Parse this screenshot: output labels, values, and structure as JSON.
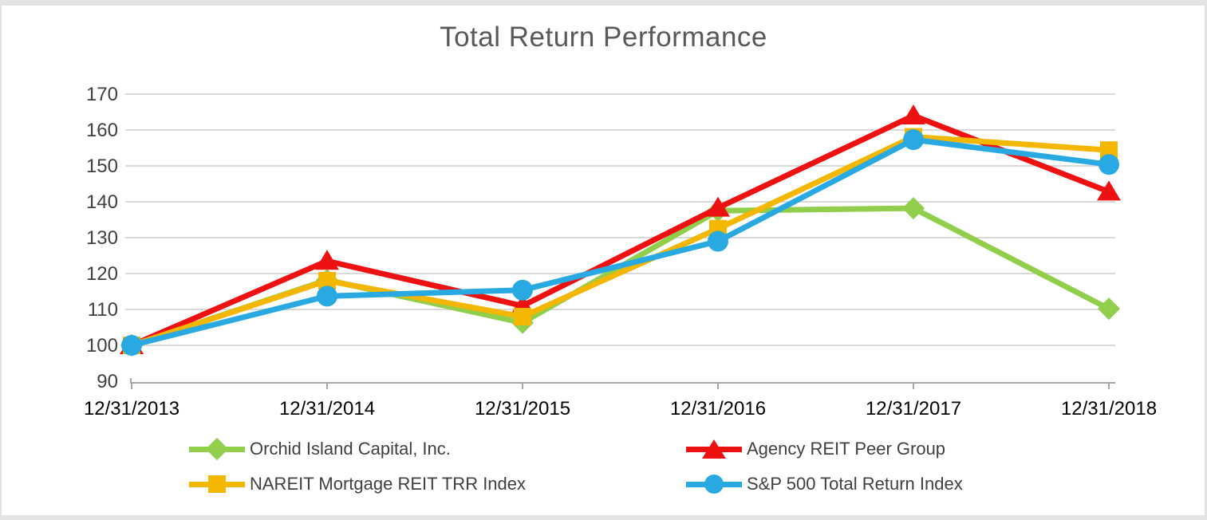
{
  "chart_data": {
    "type": "line",
    "title": "Total Return Performance",
    "categories": [
      "12/31/2013",
      "12/31/2014",
      "12/31/2015",
      "12/31/2016",
      "12/31/2017",
      "12/31/2018"
    ],
    "y_ticks": [
      90,
      100,
      110,
      120,
      130,
      140,
      150,
      160,
      170
    ],
    "ylim": [
      90,
      170
    ],
    "grid": true,
    "legend_position": "bottom",
    "series": [
      {
        "name": "Orchid Island Capital, Inc.",
        "color": "#90CE4C",
        "marker": "diamond",
        "values": [
          100,
          118.2,
          106.3,
          137.5,
          138.2,
          110.2
        ]
      },
      {
        "name": "Agency REIT Peer Group",
        "color": "#EE1111",
        "marker": "triangle",
        "values": [
          100,
          123.5,
          111.0,
          138.3,
          164.0,
          142.8
        ]
      },
      {
        "name": "NAREIT Mortgage REIT TRR Index",
        "color": "#F3B700",
        "marker": "square",
        "values": [
          100,
          118.0,
          108.0,
          132.5,
          158.1,
          154.4
        ]
      },
      {
        "name": "S&P 500 Total Return Index",
        "color": "#29A9E1",
        "marker": "circle",
        "values": [
          100,
          113.7,
          115.4,
          129.0,
          157.3,
          150.4
        ]
      }
    ],
    "colors": {
      "gridline": "#D9D9D9",
      "axis_line": "#A6A6A6",
      "title_text": "#595959",
      "y_label_text": "#404040",
      "x_label_text": "#000000",
      "legend_text": "#404040",
      "frame_border": "#E3E3E3",
      "background": "#FFFFFF"
    }
  }
}
